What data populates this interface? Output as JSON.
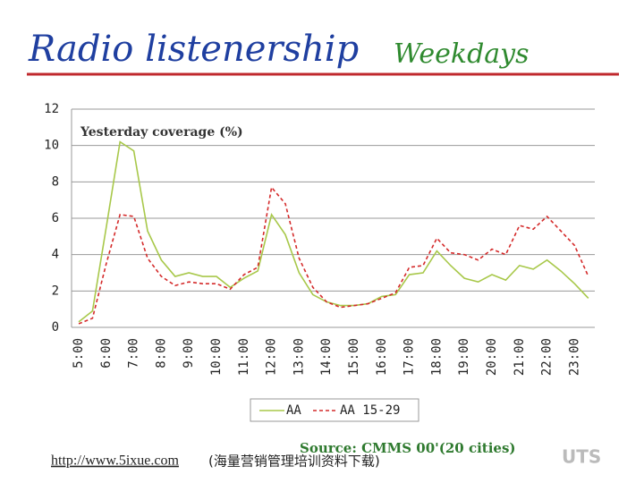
{
  "chart_data": {
    "type": "line",
    "title": "Radio listenership",
    "subtitle": "Weekdays",
    "y_label": "Yesterday coverage (%)",
    "source": "Source: CMMS 00'(20 cities)",
    "url": "http://www.5ixue.com",
    "url_note": "(海量营销管理培训资料下载)",
    "logo": "UTS",
    "categories": [
      "5:00",
      null,
      "6:00",
      null,
      "7:00",
      null,
      "8:00",
      null,
      "9:00",
      null,
      "10:00",
      null,
      "11:00",
      null,
      "12:00",
      null,
      "13:00",
      null,
      "14:00",
      null,
      "15:00",
      null,
      "16:00",
      null,
      "17:00",
      null,
      "18:00",
      null,
      "19:00",
      null,
      "20:00",
      null,
      "21:00",
      null,
      "22:00",
      null,
      "23:00",
      null
    ],
    "series": [
      {
        "name": "AA",
        "color": "#a8c84a",
        "dash": false,
        "values": [
          0.3,
          0.9,
          5.5,
          10.2,
          9.7,
          5.3,
          3.7,
          2.8,
          3.0,
          2.8,
          2.8,
          2.2,
          2.7,
          3.1,
          6.2,
          5.1,
          3.0,
          1.8,
          1.4,
          1.2,
          1.2,
          1.3,
          1.7,
          1.8,
          2.9,
          3.0,
          4.2,
          3.4,
          2.7,
          2.5,
          2.9,
          2.6,
          3.4,
          3.2,
          3.7,
          3.1,
          2.4,
          1.6
        ]
      },
      {
        "name": "AA 15-29",
        "color": "#d42a2a",
        "dash": true,
        "values": [
          0.2,
          0.5,
          3.5,
          6.2,
          6.1,
          3.8,
          2.8,
          2.3,
          2.5,
          2.4,
          2.4,
          2.1,
          2.9,
          3.3,
          7.7,
          6.8,
          3.8,
          2.2,
          1.4,
          1.1,
          1.2,
          1.3,
          1.6,
          1.9,
          3.3,
          3.4,
          4.9,
          4.1,
          4.0,
          3.7,
          4.3,
          4.0,
          5.6,
          5.4,
          6.1,
          5.3,
          4.5,
          2.8
        ]
      }
    ],
    "ylim": [
      0,
      12
    ],
    "yticks": [
      0,
      2,
      4,
      6,
      8,
      10,
      12
    ],
    "grid": true,
    "legend": "bottom"
  }
}
